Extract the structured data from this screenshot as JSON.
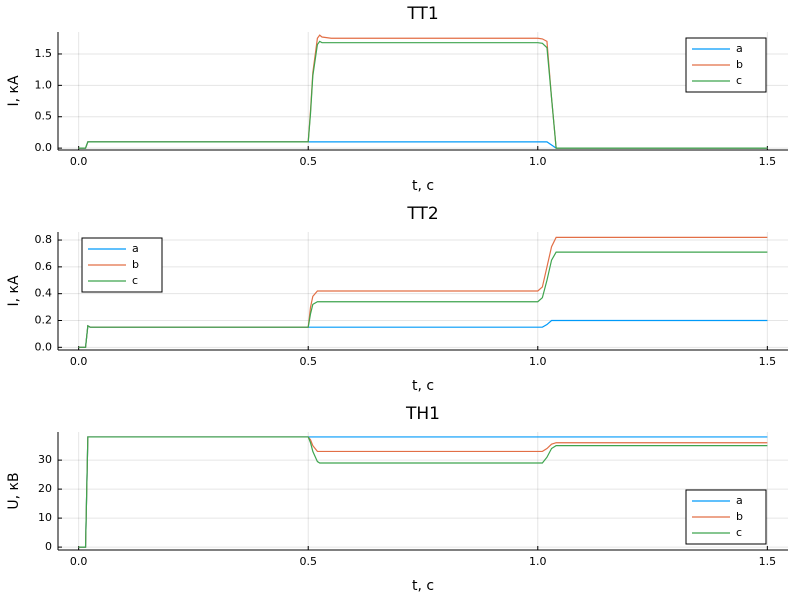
{
  "chart_data": [
    {
      "type": "line",
      "title": "TT1",
      "x_label": "t, c",
      "y_label": "I, кА",
      "x": [
        0,
        0.015,
        0.02,
        0.5,
        0.505,
        0.51,
        0.52,
        0.525,
        0.53,
        0.55,
        1.0,
        1.01,
        1.02,
        1.03,
        1.04,
        1.05,
        1.5
      ],
      "series": [
        {
          "name": "a",
          "color": "#009af9",
          "values": [
            0,
            0,
            0.1,
            0.1,
            0.1,
            0.1,
            0.1,
            0.1,
            0.1,
            0.1,
            0.1,
            0.1,
            0.1,
            0.05,
            0,
            0,
            0
          ]
        },
        {
          "name": "b",
          "color": "#e26f46",
          "values": [
            0,
            0,
            0.1,
            0.1,
            0.6,
            1.2,
            1.75,
            1.8,
            1.77,
            1.75,
            1.75,
            1.74,
            1.7,
            0.8,
            0,
            0,
            0
          ]
        },
        {
          "name": "c",
          "color": "#3ea44e",
          "values": [
            0,
            0,
            0.1,
            0.1,
            0.55,
            1.15,
            1.65,
            1.7,
            1.68,
            1.68,
            1.68,
            1.67,
            1.6,
            0.8,
            0,
            0,
            0
          ]
        }
      ],
      "xlim": [
        -0.045,
        1.545
      ],
      "xticks": [
        {
          "value": 0,
          "label": "0.0"
        },
        0.5,
        {
          "value": 1,
          "label": "1.0"
        },
        1.5
      ],
      "ylim": [
        -0.03,
        1.85
      ],
      "yticks": [
        {
          "value": 0,
          "label": "0.0"
        },
        0.5,
        {
          "value": 1,
          "label": "1.0"
        },
        1.5
      ],
      "grid": true,
      "legend": "top-right"
    },
    {
      "type": "line",
      "title": "TT2",
      "x_label": "t, c",
      "y_label": "I, кА",
      "x": [
        0,
        0.015,
        0.02,
        0.025,
        0.04,
        0.5,
        0.505,
        0.51,
        0.52,
        0.525,
        0.55,
        1.0,
        1.01,
        1.02,
        1.03,
        1.04,
        1.05,
        1.5
      ],
      "series": [
        {
          "name": "a",
          "color": "#009af9",
          "values": [
            0,
            0,
            0.16,
            0.15,
            0.15,
            0.15,
            0.15,
            0.15,
            0.15,
            0.15,
            0.15,
            0.15,
            0.15,
            0.17,
            0.2,
            0.2,
            0.2,
            0.2
          ]
        },
        {
          "name": "b",
          "color": "#e26f46",
          "values": [
            0,
            0,
            0.16,
            0.15,
            0.15,
            0.15,
            0.3,
            0.38,
            0.42,
            0.42,
            0.42,
            0.42,
            0.45,
            0.6,
            0.75,
            0.82,
            0.82,
            0.82
          ]
        },
        {
          "name": "c",
          "color": "#3ea44e",
          "values": [
            0,
            0,
            0.16,
            0.15,
            0.15,
            0.15,
            0.25,
            0.32,
            0.34,
            0.34,
            0.34,
            0.34,
            0.37,
            0.5,
            0.65,
            0.71,
            0.71,
            0.71
          ]
        }
      ],
      "xlim": [
        -0.045,
        1.545
      ],
      "xticks": [
        {
          "value": 0,
          "label": "0.0"
        },
        0.5,
        {
          "value": 1,
          "label": "1.0"
        },
        1.5
      ],
      "ylim": [
        -0.02,
        0.86
      ],
      "yticks": [
        {
          "value": 0,
          "label": "0.0"
        },
        0.2,
        0.4,
        0.6,
        0.8
      ],
      "grid": true,
      "legend": "top-left"
    },
    {
      "type": "line",
      "title": "TH1",
      "x_label": "t, c",
      "y_label": "U, кВ",
      "x": [
        0,
        0.015,
        0.02,
        0.5,
        0.505,
        0.51,
        0.52,
        0.525,
        0.55,
        1.0,
        1.01,
        1.02,
        1.03,
        1.04,
        1.05,
        1.5
      ],
      "series": [
        {
          "name": "a",
          "color": "#009af9",
          "values": [
            0,
            0,
            38,
            38,
            38,
            38,
            38,
            38,
            38,
            38,
            38,
            38,
            38,
            38,
            38,
            38
          ]
        },
        {
          "name": "b",
          "color": "#e26f46",
          "values": [
            0,
            0,
            38,
            38,
            37,
            35,
            33,
            33,
            33,
            33,
            33,
            34,
            35.5,
            36,
            36,
            36
          ]
        },
        {
          "name": "c",
          "color": "#3ea44e",
          "values": [
            0,
            0,
            38,
            38,
            36,
            33,
            29.5,
            29,
            29,
            29,
            29,
            31,
            34,
            35,
            35,
            35
          ]
        }
      ],
      "xlim": [
        -0.045,
        1.545
      ],
      "xticks": [
        {
          "value": 0,
          "label": "0.0"
        },
        0.5,
        {
          "value": 1,
          "label": "1.0"
        },
        1.5
      ],
      "ylim": [
        -1,
        39.7
      ],
      "yticks": [
        0,
        10,
        20,
        30
      ],
      "grid": true,
      "legend": "bottom-right"
    }
  ]
}
